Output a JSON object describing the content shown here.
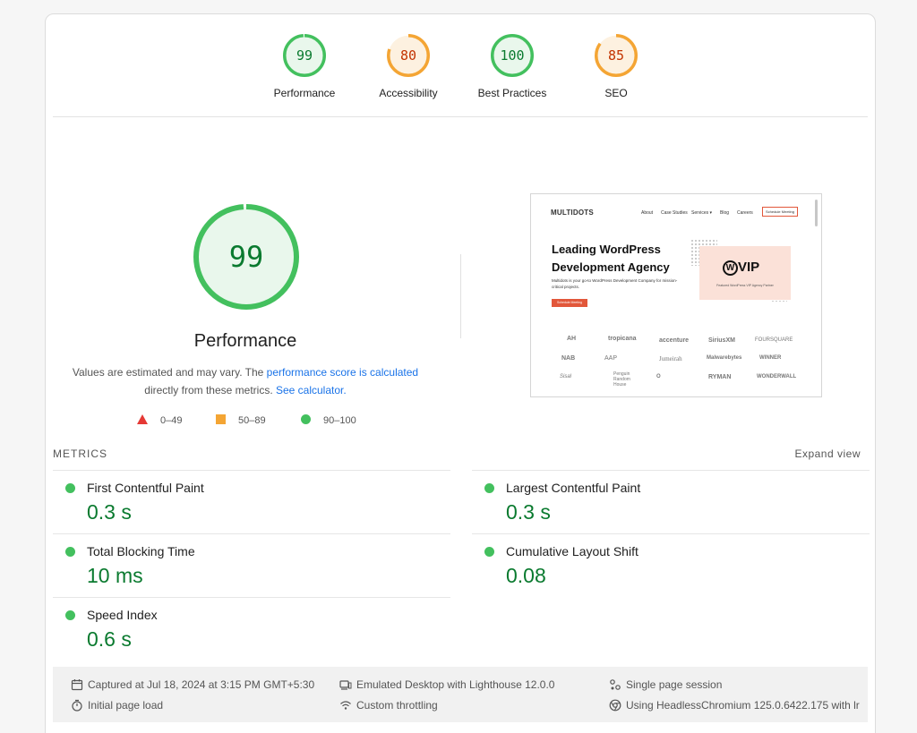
{
  "categories": [
    {
      "label": "Performance",
      "score": "99",
      "fraction": 0.99,
      "color": "#43c05e",
      "fill": "#e9f7ec",
      "text_color": "#0a7a2f"
    },
    {
      "label": "Accessibility",
      "score": "80",
      "fraction": 0.8,
      "color": "#f4a534",
      "fill": "#fdf1e0",
      "text_color": "#c33300"
    },
    {
      "label": "Best Practices",
      "score": "100",
      "fraction": 1.0,
      "color": "#43c05e",
      "fill": "#e9f7ec",
      "text_color": "#0a7a2f"
    },
    {
      "label": "SEO",
      "score": "85",
      "fraction": 0.85,
      "color": "#f4a534",
      "fill": "#fdf1e0",
      "text_color": "#c33300"
    }
  ],
  "performance": {
    "score": "99",
    "fraction": 0.99,
    "title": "Performance",
    "desc_prefix": "Values are estimated and may vary. The ",
    "desc_link": "performance score is calculated",
    "desc_middle": " directly from these metrics. ",
    "desc_calc_link": "See calculator.",
    "legend": [
      "0–49",
      "50–89",
      "90–100"
    ]
  },
  "thumbnail": {
    "logo": "MULTIDOTS",
    "nav": [
      "About",
      "Case Studies",
      "Services ▾",
      "Blog",
      "Careers"
    ],
    "schedule": "Schedule Meeting",
    "headline": "Leading WordPress Development Agency",
    "subtext": "Multidots is your go-to WordPress Development Company for mission-critical projects.",
    "cta": "Schedule Meeting",
    "vip_mark": "VIP",
    "vip_caption": "Featured WordPress VIP Agency Partner",
    "brands": [
      "AH",
      "tropicana",
      "accenture",
      "SiriusXM",
      "FOURSQUARE",
      "NAB",
      "AAP",
      "Jumeirah",
      "Malwarebytes",
      "WINNER",
      "Sisal",
      "Penguin Random House",
      "O",
      "RYMAN",
      "WONDERWALL"
    ]
  },
  "metrics": {
    "heading": "METRICS",
    "expand": "Expand view",
    "items": [
      {
        "name": "First Contentful Paint",
        "value": "0.3 s"
      },
      {
        "name": "Largest Contentful Paint",
        "value": "0.3 s"
      },
      {
        "name": "Total Blocking Time",
        "value": "10 ms"
      },
      {
        "name": "Cumulative Layout Shift",
        "value": "0.08"
      },
      {
        "name": "Speed Index",
        "value": "0.6 s"
      }
    ]
  },
  "footer": {
    "captured": "Captured at Jul 18, 2024 at 3:15 PM GMT+5:30",
    "load": "Initial page load",
    "device": "Emulated Desktop with Lighthouse 12.0.0",
    "throttling": "Custom throttling",
    "session": "Single page session",
    "browser": "Using HeadlessChromium 125.0.6422.175 with lr"
  }
}
